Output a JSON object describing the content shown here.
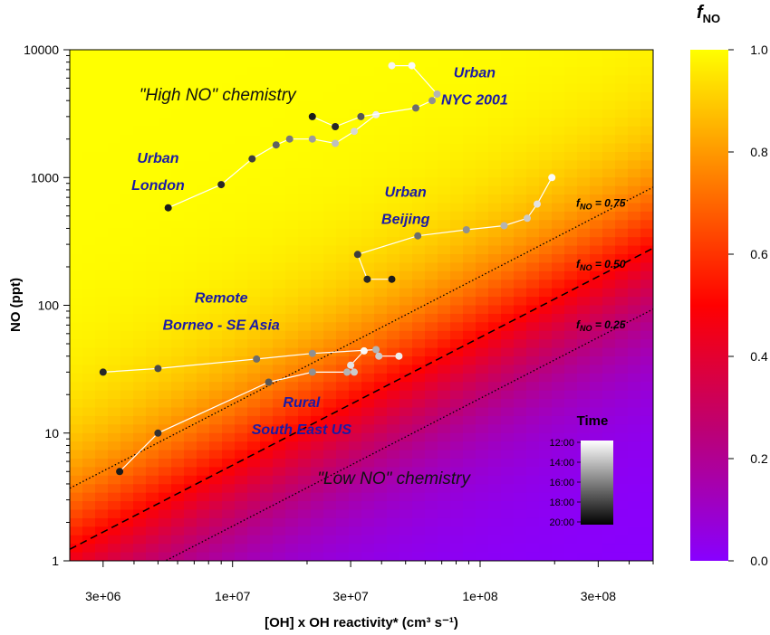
{
  "chart_data": {
    "type": "scatter",
    "xlabel": "[OH] x OH reactivity* (cm³ s⁻¹)",
    "ylabel": "NO (ppt)",
    "xscale": "log",
    "yscale": "log",
    "xlim": [
      2200000,
      500000000
    ],
    "ylim": [
      1,
      10000
    ],
    "x_ticks": [
      {
        "value": 3000000,
        "label": "3e+06"
      },
      {
        "value": 10000000,
        "label": "1e+07"
      },
      {
        "value": 30000000,
        "label": "3e+07"
      },
      {
        "value": 100000000,
        "label": "1e+08"
      },
      {
        "value": 300000000,
        "label": "3e+08"
      }
    ],
    "y_ticks": [
      {
        "value": 1,
        "label": "1"
      },
      {
        "value": 10,
        "label": "10"
      },
      {
        "value": 100,
        "label": "100"
      },
      {
        "value": 1000,
        "label": "1000"
      },
      {
        "value": 10000,
        "label": "10000"
      }
    ],
    "background": "f_NO field: f_NO = NO / (NO + 5.6 × [OH]·OH reactivity / 1e7)",
    "colorbar": {
      "title": "f",
      "title_sub": "NO",
      "range": [
        0,
        1
      ],
      "ticks": [
        "0.0",
        "0.2",
        "0.4",
        "0.6",
        "0.8",
        "1.0"
      ],
      "stops": [
        "#8800ff",
        "#bb0077",
        "#ff0000",
        "#ff8000",
        "#ffff00"
      ]
    },
    "time_colorbar": {
      "title": "Time",
      "ticks": [
        "12:00",
        "14:00",
        "16:00",
        "18:00",
        "20:00"
      ]
    },
    "contours": [
      {
        "label_main": "f",
        "label_sub": "NO",
        "label_rest": " = 0.75",
        "fno": 0.75,
        "style": "dotted"
      },
      {
        "label_main": "f",
        "label_sub": "NO",
        "label_rest": " = 0.50",
        "fno": 0.5,
        "style": "dashed"
      },
      {
        "label_main": "f",
        "label_sub": "NO",
        "label_rest": " = 0.25",
        "fno": 0.25,
        "style": "dotted"
      }
    ],
    "region_labels": [
      {
        "text": "\"High NO\" chemistry",
        "x": 4200000,
        "y": 4000
      },
      {
        "text": "\"Low NO\" chemistry",
        "x": 22000000,
        "y": 4
      }
    ],
    "series": [
      {
        "name": "Urban London",
        "label_lines": [
          "Urban",
          "London"
        ],
        "label_at": [
          5000000,
          1300
        ],
        "points": [
          {
            "x": 5500000,
            "y": 580,
            "g": 0.05
          },
          {
            "x": 9000000,
            "y": 880,
            "g": 0.1
          },
          {
            "x": 12000000,
            "y": 1400,
            "g": 0.2
          },
          {
            "x": 15000000,
            "y": 1800,
            "g": 0.35
          },
          {
            "x": 17000000,
            "y": 2000,
            "g": 0.45
          },
          {
            "x": 21000000,
            "y": 2000,
            "g": 0.6
          },
          {
            "x": 26000000,
            "y": 1850,
            "g": 0.75
          },
          {
            "x": 31000000,
            "y": 2300,
            "g": 0.85
          },
          {
            "x": 38000000,
            "y": 3100,
            "g": 0.95
          }
        ]
      },
      {
        "name": "Urban NYC 2001",
        "label_lines": [
          "Urban",
          "NYC 2001"
        ],
        "label_at": [
          95000000,
          6100
        ],
        "points": [
          {
            "x": 21000000,
            "y": 3000,
            "g": 0.05
          },
          {
            "x": 26000000,
            "y": 2500,
            "g": 0.1
          },
          {
            "x": 33000000,
            "y": 3000,
            "g": 0.3
          },
          {
            "x": 55000000,
            "y": 3500,
            "g": 0.4
          },
          {
            "x": 64000000,
            "y": 4000,
            "g": 0.55
          },
          {
            "x": 67000000,
            "y": 4500,
            "g": 0.7
          },
          {
            "x": 53000000,
            "y": 7500,
            "g": 1.0
          },
          {
            "x": 44000000,
            "y": 7500,
            "g": 0.98
          }
        ]
      },
      {
        "name": "Urban Beijing",
        "label_lines": [
          "Urban",
          "Beijing"
        ],
        "label_at": [
          50000000,
          710
        ],
        "points": [
          {
            "x": 44000000,
            "y": 160,
            "g": 0.05
          },
          {
            "x": 35000000,
            "y": 160,
            "g": 0.1
          },
          {
            "x": 32000000,
            "y": 250,
            "g": 0.2
          },
          {
            "x": 56000000,
            "y": 350,
            "g": 0.4
          },
          {
            "x": 88000000,
            "y": 390,
            "g": 0.55
          },
          {
            "x": 125000000,
            "y": 420,
            "g": 0.7
          },
          {
            "x": 155000000,
            "y": 480,
            "g": 0.8
          },
          {
            "x": 170000000,
            "y": 620,
            "g": 0.9
          },
          {
            "x": 195000000,
            "y": 1000,
            "g": 1.0
          }
        ]
      },
      {
        "name": "Remote Borneo - SE Asia",
        "label_lines": [
          "Remote",
          "Borneo - SE Asia"
        ],
        "label_at": [
          9000000,
          105
        ],
        "points": [
          {
            "x": 3000000,
            "y": 30,
            "g": 0.1
          },
          {
            "x": 5000000,
            "y": 32,
            "g": 0.25
          },
          {
            "x": 12500000,
            "y": 38,
            "g": 0.4
          },
          {
            "x": 21000000,
            "y": 42,
            "g": 0.55
          },
          {
            "x": 38000000,
            "y": 45,
            "g": 0.7
          },
          {
            "x": 39000000,
            "y": 40,
            "g": 0.8
          },
          {
            "x": 47000000,
            "y": 40,
            "g": 0.95
          }
        ]
      },
      {
        "name": "Rural South East US",
        "label_lines": [
          "Rural",
          "South East US"
        ],
        "label_at": [
          19000000,
          16
        ],
        "points": [
          {
            "x": 3500000,
            "y": 5,
            "g": 0.05
          },
          {
            "x": 5000000,
            "y": 10,
            "g": 0.15
          },
          {
            "x": 14000000,
            "y": 25,
            "g": 0.3
          },
          {
            "x": 21000000,
            "y": 30,
            "g": 0.55
          },
          {
            "x": 29000000,
            "y": 30,
            "g": 0.7
          },
          {
            "x": 31000000,
            "y": 30,
            "g": 0.8
          },
          {
            "x": 30000000,
            "y": 34,
            "g": 0.9
          },
          {
            "x": 34000000,
            "y": 44,
            "g": 1.0
          }
        ]
      }
    ]
  }
}
